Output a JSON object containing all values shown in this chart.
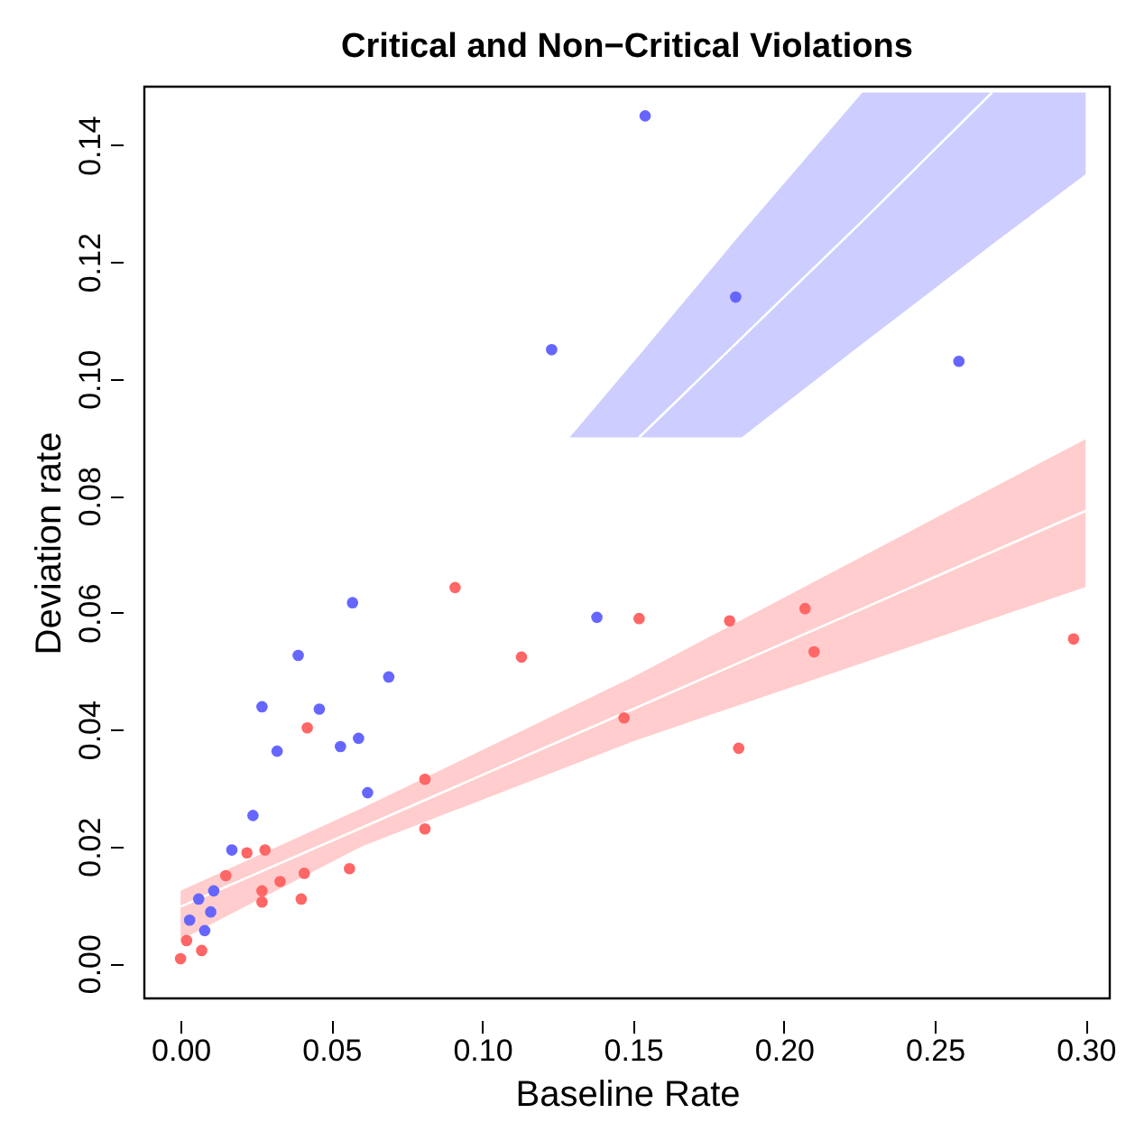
{
  "chart_data": {
    "type": "scatter",
    "title": "Critical and Non−Critical Violations",
    "xlabel": "Baseline Rate",
    "ylabel": "Deviation rate",
    "xlim": [
      -0.012,
      0.308
    ],
    "ylim": [
      -0.006,
      0.15
    ],
    "xticks": [
      {
        "value": 0,
        "label": "0.00"
      },
      {
        "value": 0.05,
        "label": "0.05"
      },
      {
        "value": 0.1,
        "label": "0.10"
      },
      {
        "value": 0.15,
        "label": "0.15"
      },
      {
        "value": 0.2,
        "label": "0.20"
      },
      {
        "value": 0.25,
        "label": "0.25"
      },
      {
        "value": 0.3,
        "label": "0.30"
      }
    ],
    "yticks": [
      {
        "value": 0,
        "label": "0.00"
      },
      {
        "value": 0.02,
        "label": "0.02"
      },
      {
        "value": 0.04,
        "label": "0.04"
      },
      {
        "value": 0.06,
        "label": "0.06"
      },
      {
        "value": 0.08,
        "label": "0.08"
      },
      {
        "value": 0.1,
        "label": "0.10"
      },
      {
        "value": 0.12,
        "label": "0.12"
      },
      {
        "value": 0.14,
        "label": "0.14"
      }
    ],
    "grid": false,
    "marker": "circle",
    "series": [
      {
        "color": "#ff6666",
        "x": [
          0.091,
          0.042,
          0.081,
          0.081,
          0.022,
          0.028,
          0.015,
          0.056,
          0.041,
          0.033,
          0.027,
          0.027,
          0.04,
          0.002,
          0.0,
          0.007,
          0.152,
          0.182,
          0.207,
          0.113,
          0.21,
          0.296,
          0.147,
          0.185
        ],
        "values": [
          0.0643,
          0.0403,
          0.0315,
          0.023,
          0.0189,
          0.0194,
          0.015,
          0.0162,
          0.0154,
          0.014,
          0.0124,
          0.0105,
          0.011,
          0.0039,
          0.0008,
          0.0022,
          0.059,
          0.0586,
          0.0607,
          0.0524,
          0.0533,
          0.0555,
          0.042,
          0.0368
        ]
      },
      {
        "color": "#6666ff",
        "x": [
          0.154,
          0.184,
          0.123,
          0.258,
          0.057,
          0.039,
          0.069,
          0.027,
          0.046,
          0.059,
          0.053,
          0.032,
          0.062,
          0.024,
          0.017,
          0.011,
          0.006,
          0.01,
          0.003,
          0.008,
          0.138
        ],
        "values": [
          0.145,
          0.114,
          0.105,
          0.103,
          0.0617,
          0.0527,
          0.049,
          0.0439,
          0.0435,
          0.0385,
          0.0371,
          0.0363,
          0.0292,
          0.0253,
          0.0194,
          0.0124,
          0.011,
          0.0088,
          0.0074,
          0.0056,
          0.0592
        ]
      },
      {
        "type": "line",
        "color": "#ffffff",
        "marker": "none",
        "line_style": "solid",
        "x": [
          0,
          0.06,
          0.15,
          0.3
        ],
        "values": [
          0.0097,
          0.0232,
          0.0435,
          0.0774
        ],
        "lower": [
          0.004,
          0.02,
          0.038,
          0.0644
        ],
        "upper": [
          0.0124,
          0.0265,
          0.049,
          0.0897
        ]
      },
      {
        "type": "line",
        "color": "#ffffff",
        "marker": "none",
        "line_style": "solid",
        "x": [
          0.129,
          0.152,
          0.186,
          0.226,
          0.269,
          0.3
        ],
        "values": [
          null,
          0.09,
          0.107,
          0.127,
          0.149,
          null
        ],
        "lower": [
          0.09,
          0.09,
          0.09,
          0.106,
          0.123,
          0.135
        ],
        "upper": [
          0.09,
          0.104,
          0.125,
          0.149,
          0.149,
          0.149
        ]
      }
    ]
  }
}
